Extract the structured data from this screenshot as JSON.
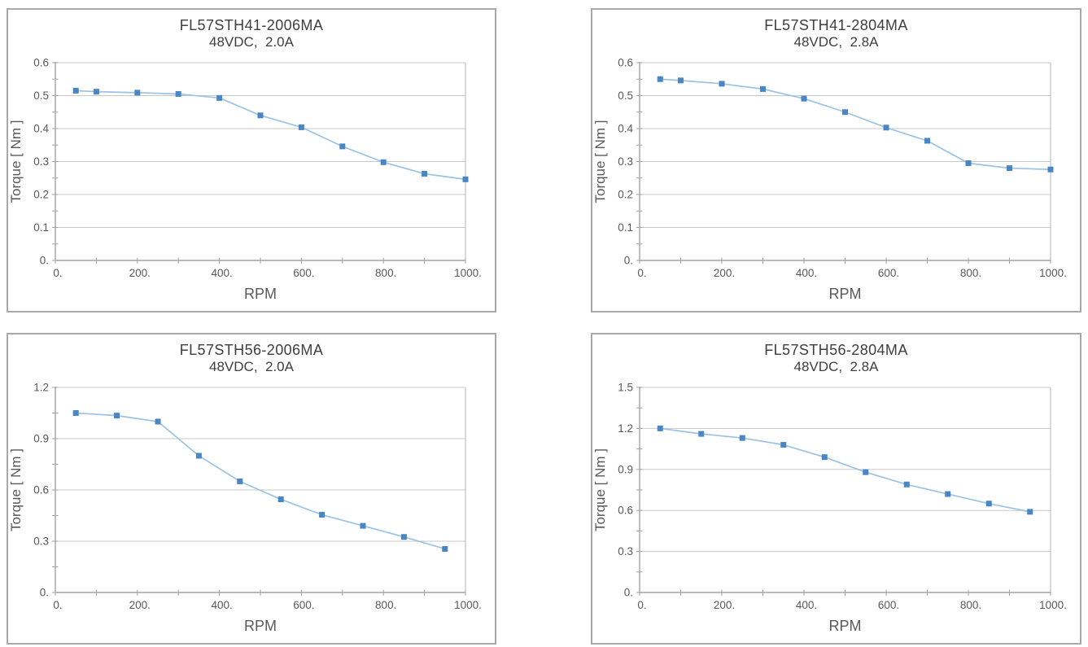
{
  "style": {
    "marker_color": "#4a86c4",
    "line_color": "#9cc2e5",
    "grid_color": "#c8c8c8",
    "axis_color": "#a2a2a2",
    "frame_color": "#b5b5b5",
    "tick_label_color": "#595959",
    "title_color": "#3f3f3f",
    "panel_border_color": "#a9a9a9",
    "background_color": "#ffffff"
  },
  "chart_data": [
    {
      "id": "fl57sth41-2006ma",
      "type": "line",
      "title": "FL57STH41-2006MA",
      "subtitle": "48VDC,  2.0A",
      "xlabel": "RPM",
      "ylabel": "Torque [ Nm ]",
      "xlim": [
        0,
        1000
      ],
      "ylim": [
        0,
        0.6
      ],
      "grid": "horizontal-major-only",
      "legend": "none",
      "xticks": {
        "major_step": 200,
        "minor_step": 100,
        "labels": [
          "0.",
          "200.",
          "400.",
          "600.",
          "800.",
          "1000."
        ]
      },
      "yticks": {
        "major_step": 0.1,
        "minor_step": 0.05,
        "labels": [
          "0.",
          "0.1",
          "0.2",
          "0.3",
          "0.4",
          "0.5",
          "0.6"
        ]
      },
      "x": [
        50,
        100,
        200,
        300,
        400,
        500,
        600,
        700,
        800,
        900,
        1000
      ],
      "y": [
        0.515,
        0.512,
        0.509,
        0.505,
        0.493,
        0.44,
        0.404,
        0.346,
        0.298,
        0.263,
        0.246
      ]
    },
    {
      "id": "fl57sth41-2804ma",
      "type": "line",
      "title": "FL57STH41-2804MA",
      "subtitle": "48VDC,  2.8A",
      "xlabel": "RPM",
      "ylabel": "Torque [ Nm ]",
      "xlim": [
        0,
        1000
      ],
      "ylim": [
        0,
        0.6
      ],
      "grid": "horizontal-major-only",
      "legend": "none",
      "xticks": {
        "major_step": 200,
        "minor_step": 100,
        "labels": [
          "0.",
          "200.",
          "400.",
          "600.",
          "800.",
          "1000."
        ]
      },
      "yticks": {
        "major_step": 0.1,
        "minor_step": 0.05,
        "labels": [
          "0.",
          "0.1",
          "0.2",
          "0.3",
          "0.4",
          "0.5",
          "0.6"
        ]
      },
      "x": [
        50,
        100,
        200,
        300,
        400,
        500,
        600,
        700,
        800,
        900,
        1000
      ],
      "y": [
        0.55,
        0.546,
        0.536,
        0.52,
        0.491,
        0.45,
        0.403,
        0.363,
        0.295,
        0.28,
        0.276
      ]
    },
    {
      "id": "fl57sth56-2006ma",
      "type": "line",
      "title": "FL57STH56-2006MA",
      "subtitle": "48VDC,  2.0A",
      "xlabel": "RPM",
      "ylabel": "Torque [ Nm ]",
      "xlim": [
        0,
        1000
      ],
      "ylim": [
        0,
        1.2
      ],
      "grid": "horizontal-major-only",
      "legend": "none",
      "xticks": {
        "major_step": 200,
        "minor_step": 100,
        "labels": [
          "0.",
          "200.",
          "400.",
          "600.",
          "800.",
          "1000."
        ]
      },
      "yticks": {
        "major_step": 0.3,
        "minor_step": 0.15,
        "labels": [
          "0.",
          "0.3",
          "0.6",
          "0.9",
          "1.2"
        ]
      },
      "x": [
        50,
        150,
        250,
        350,
        450,
        550,
        650,
        750,
        850,
        950
      ],
      "y": [
        1.05,
        1.035,
        1.0,
        0.8,
        0.65,
        0.545,
        0.455,
        0.39,
        0.325,
        0.255
      ]
    },
    {
      "id": "fl57sth56-2804ma",
      "type": "line",
      "title": "FL57STH56-2804MA",
      "subtitle": "48VDC,  2.8A",
      "xlabel": "RPM",
      "ylabel": "Torque [ Nm ]",
      "xlim": [
        0,
        1000
      ],
      "ylim": [
        0,
        1.5
      ],
      "grid": "horizontal-major-only",
      "legend": "none",
      "xticks": {
        "major_step": 200,
        "minor_step": 100,
        "labels": [
          "0.",
          "200.",
          "400.",
          "600.",
          "800.",
          "1000."
        ]
      },
      "yticks": {
        "major_step": 0.3,
        "minor_step": 0.15,
        "labels": [
          "0.",
          "0.3",
          "0.6",
          "0.9",
          "1.2",
          "1.5"
        ]
      },
      "x": [
        50,
        150,
        250,
        350,
        450,
        550,
        650,
        750,
        850,
        950
      ],
      "y": [
        1.2,
        1.16,
        1.13,
        1.08,
        0.99,
        0.88,
        0.79,
        0.72,
        0.65,
        0.59
      ]
    }
  ]
}
